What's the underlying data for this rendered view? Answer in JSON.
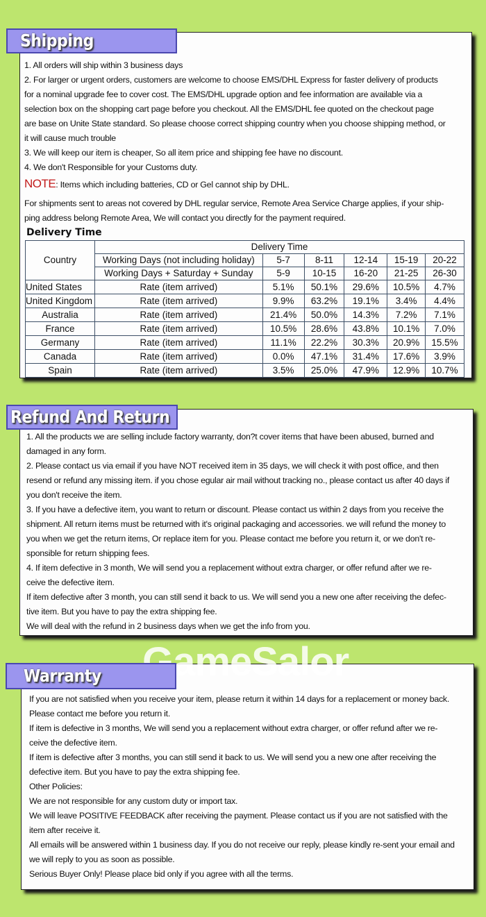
{
  "shipping": {
    "title": "Shipping",
    "lines": [
      "1. All orders will ship within 3 business days",
      "2. For larger or urgent orders, customers are welcome to choose EMS/DHL Express for faster delivery of products",
      "for a nominal upgrade fee to cover cost. The EMS/DHL upgrade option and fee information are available via a",
      "selection box on the shopping cart page before you checkout. All the EMS/DHL fee quoted on the checkout page",
      "are base on Unite State standard. So please choose correct shipping country when you choose shipping method, or",
      "it will cause much trouble",
      "3. We will keep our item is cheaper, So all item price and shipping fee have no discount.",
      "4. We don't Responsible for your Customs duty."
    ],
    "note_label": "NOTE",
    "note_text": ": Items which including batteries, CD or Gel cannot ship by DHL.",
    "remote_lines": [
      "For shipments sent to areas not covered by DHL regular service, Remote Area Service Charge applies, if your ship-",
      "ping address belong Remote Area, We will contact you directly for the payment required."
    ],
    "delivery_heading": "Delivery Time",
    "table": {
      "country_header": "Country",
      "group_header": "Delivery Time",
      "row1_label": "Working Days (not including holiday)",
      "row1_values": [
        "5-7",
        "8-11",
        "12-14",
        "15-19",
        "20-22"
      ],
      "row2_label": "Working Days + Saturday + Sunday",
      "row2_values": [
        "5-9",
        "10-15",
        "16-20",
        "21-25",
        "26-30"
      ],
      "rows": [
        {
          "country": "United States",
          "label": "Rate (item arrived)",
          "values": [
            "5.1%",
            "50.1%",
            "29.6%",
            "10.5%",
            "4.7%"
          ]
        },
        {
          "country": "United Kingdom",
          "label": "Rate (item arrived)",
          "values": [
            "9.9%",
            "63.2%",
            "19.1%",
            "3.4%",
            "4.4%"
          ]
        },
        {
          "country": "Australia",
          "label": "Rate (item arrived)",
          "values": [
            "21.4%",
            "50.0%",
            "14.3%",
            "7.2%",
            "7.1%"
          ]
        },
        {
          "country": "France",
          "label": "Rate (item arrived)",
          "values": [
            "10.5%",
            "28.6%",
            "43.8%",
            "10.1%",
            "7.0%"
          ]
        },
        {
          "country": "Germany",
          "label": "Rate (item arrived)",
          "values": [
            "11.1%",
            "22.2%",
            "30.3%",
            "20.9%",
            "15.5%"
          ]
        },
        {
          "country": "Canada",
          "label": "Rate (item arrived)",
          "values": [
            "0.0%",
            "47.1%",
            "31.4%",
            "17.6%",
            "3.9%"
          ]
        },
        {
          "country": "Spain",
          "label": "Rate (item arrived)",
          "values": [
            "3.5%",
            "25.0%",
            "47.9%",
            "12.9%",
            "10.7%"
          ]
        }
      ]
    }
  },
  "refund": {
    "title": "Refund And Return",
    "lines": [
      "1. All the products we are selling include factory warranty, don?t cover items that have been abused, burned and",
      "damaged in any form.",
      "2. Please contact us via email if you have NOT received item in 35 days, we will check it with post office, and then",
      "resend or refund any missing item. if you chose egular air mail without tracking no., please contact us after 40 days if",
      "you don't receive the item.",
      "3. If you have a defective item, you want to return or discount. Please contact us within 2 days from you receive the",
      "shipment. All return items must be returned with it's original packaging and accessories. we will refund the money to",
      "you when we get the return items, Or replace item for you. Please contact me before you return it, or we don't re-",
      "sponsible for return shipping fees.",
      "4. If item defective in 3 month, We will send you a replacement without extra charger, or offer refund after we re-",
      "ceive the defective item.",
      "If item defective after 3 month, you can still send it back to us. We will send you a new one after receiving the defec-",
      "tive item. But you have to pay the extra shipping fee.",
      "We will deal with the refund in 2 business days when we get the info from you."
    ]
  },
  "watermark": "GameSalor",
  "warranty": {
    "title": "Warranty",
    "lines": [
      "If you are not satisfied when you receive your item, please return it within 14 days for a replacement or money back.",
      "Please contact me before you return it.",
      "If item is defective in 3 months, We will send you a replacement without extra charger, or offer refund after we re-",
      "ceive the defective item.",
      "If item is defective after 3 months, you can still send it back to us. We will send you a new one after receiving the",
      "defective item. But you have to pay the extra shipping fee.",
      "Other Policies:",
      "We are not responsible for any custom duty or import tax.",
      "We will leave POSITIVE FEEDBACK after receiving the payment. Please contact us if you are not satisfied with the",
      "item after receive it.",
      "All emails will be answered within 1 business day. If you do not receive our reply, please kindly re-sent your email and",
      "we will reply to you as soon as possible.",
      "Serious Buyer Only! Please place bid only if you agree with all the terms."
    ]
  }
}
